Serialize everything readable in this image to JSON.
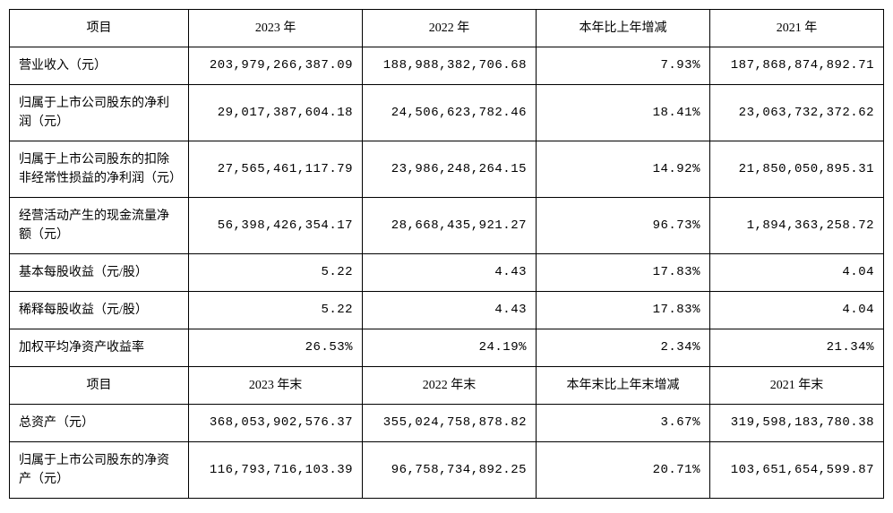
{
  "table": {
    "section1": {
      "headers": [
        "项目",
        "2023 年",
        "2022 年",
        "本年比上年增减",
        "2021 年"
      ],
      "rows": [
        {
          "label": "营业收入（元）",
          "y2023": "203,979,266,387.09",
          "y2022": "188,988,382,706.68",
          "change": "7.93%",
          "y2021": "187,868,874,892.71"
        },
        {
          "label": "归属于上市公司股东的净利润（元）",
          "y2023": "29,017,387,604.18",
          "y2022": "24,506,623,782.46",
          "change": "18.41%",
          "y2021": "23,063,732,372.62"
        },
        {
          "label": "归属于上市公司股东的扣除非经常性损益的净利润（元）",
          "y2023": "27,565,461,117.79",
          "y2022": "23,986,248,264.15",
          "change": "14.92%",
          "y2021": "21,850,050,895.31"
        },
        {
          "label": "经营活动产生的现金流量净额（元）",
          "y2023": "56,398,426,354.17",
          "y2022": "28,668,435,921.27",
          "change": "96.73%",
          "y2021": "1,894,363,258.72"
        },
        {
          "label": "基本每股收益（元/股）",
          "y2023": "5.22",
          "y2022": "4.43",
          "change": "17.83%",
          "y2021": "4.04"
        },
        {
          "label": "稀释每股收益（元/股）",
          "y2023": "5.22",
          "y2022": "4.43",
          "change": "17.83%",
          "y2021": "4.04"
        },
        {
          "label": "加权平均净资产收益率",
          "y2023": "26.53%",
          "y2022": "24.19%",
          "change": "2.34%",
          "y2021": "21.34%"
        }
      ]
    },
    "section2": {
      "headers": [
        "项目",
        "2023 年末",
        "2022 年末",
        "本年末比上年末增减",
        "2021 年末"
      ],
      "rows": [
        {
          "label": "总资产（元）",
          "y2023": "368,053,902,576.37",
          "y2022": "355,024,758,878.82",
          "change": "3.67%",
          "y2021": "319,598,183,780.38"
        },
        {
          "label": "归属于上市公司股东的净资产（元）",
          "y2023": "116,793,716,103.39",
          "y2022": "96,758,734,892.25",
          "change": "20.71%",
          "y2021": "103,651,654,599.87"
        }
      ]
    },
    "styling": {
      "border_color": "#000000",
      "background_color": "#ffffff",
      "text_color": "#000000",
      "font_size": 14,
      "column_widths": [
        "20.5%",
        "19.875%",
        "19.875%",
        "19.875%",
        "19.875%"
      ],
      "label_align": "left",
      "value_align": "right",
      "header_align": "center"
    }
  }
}
